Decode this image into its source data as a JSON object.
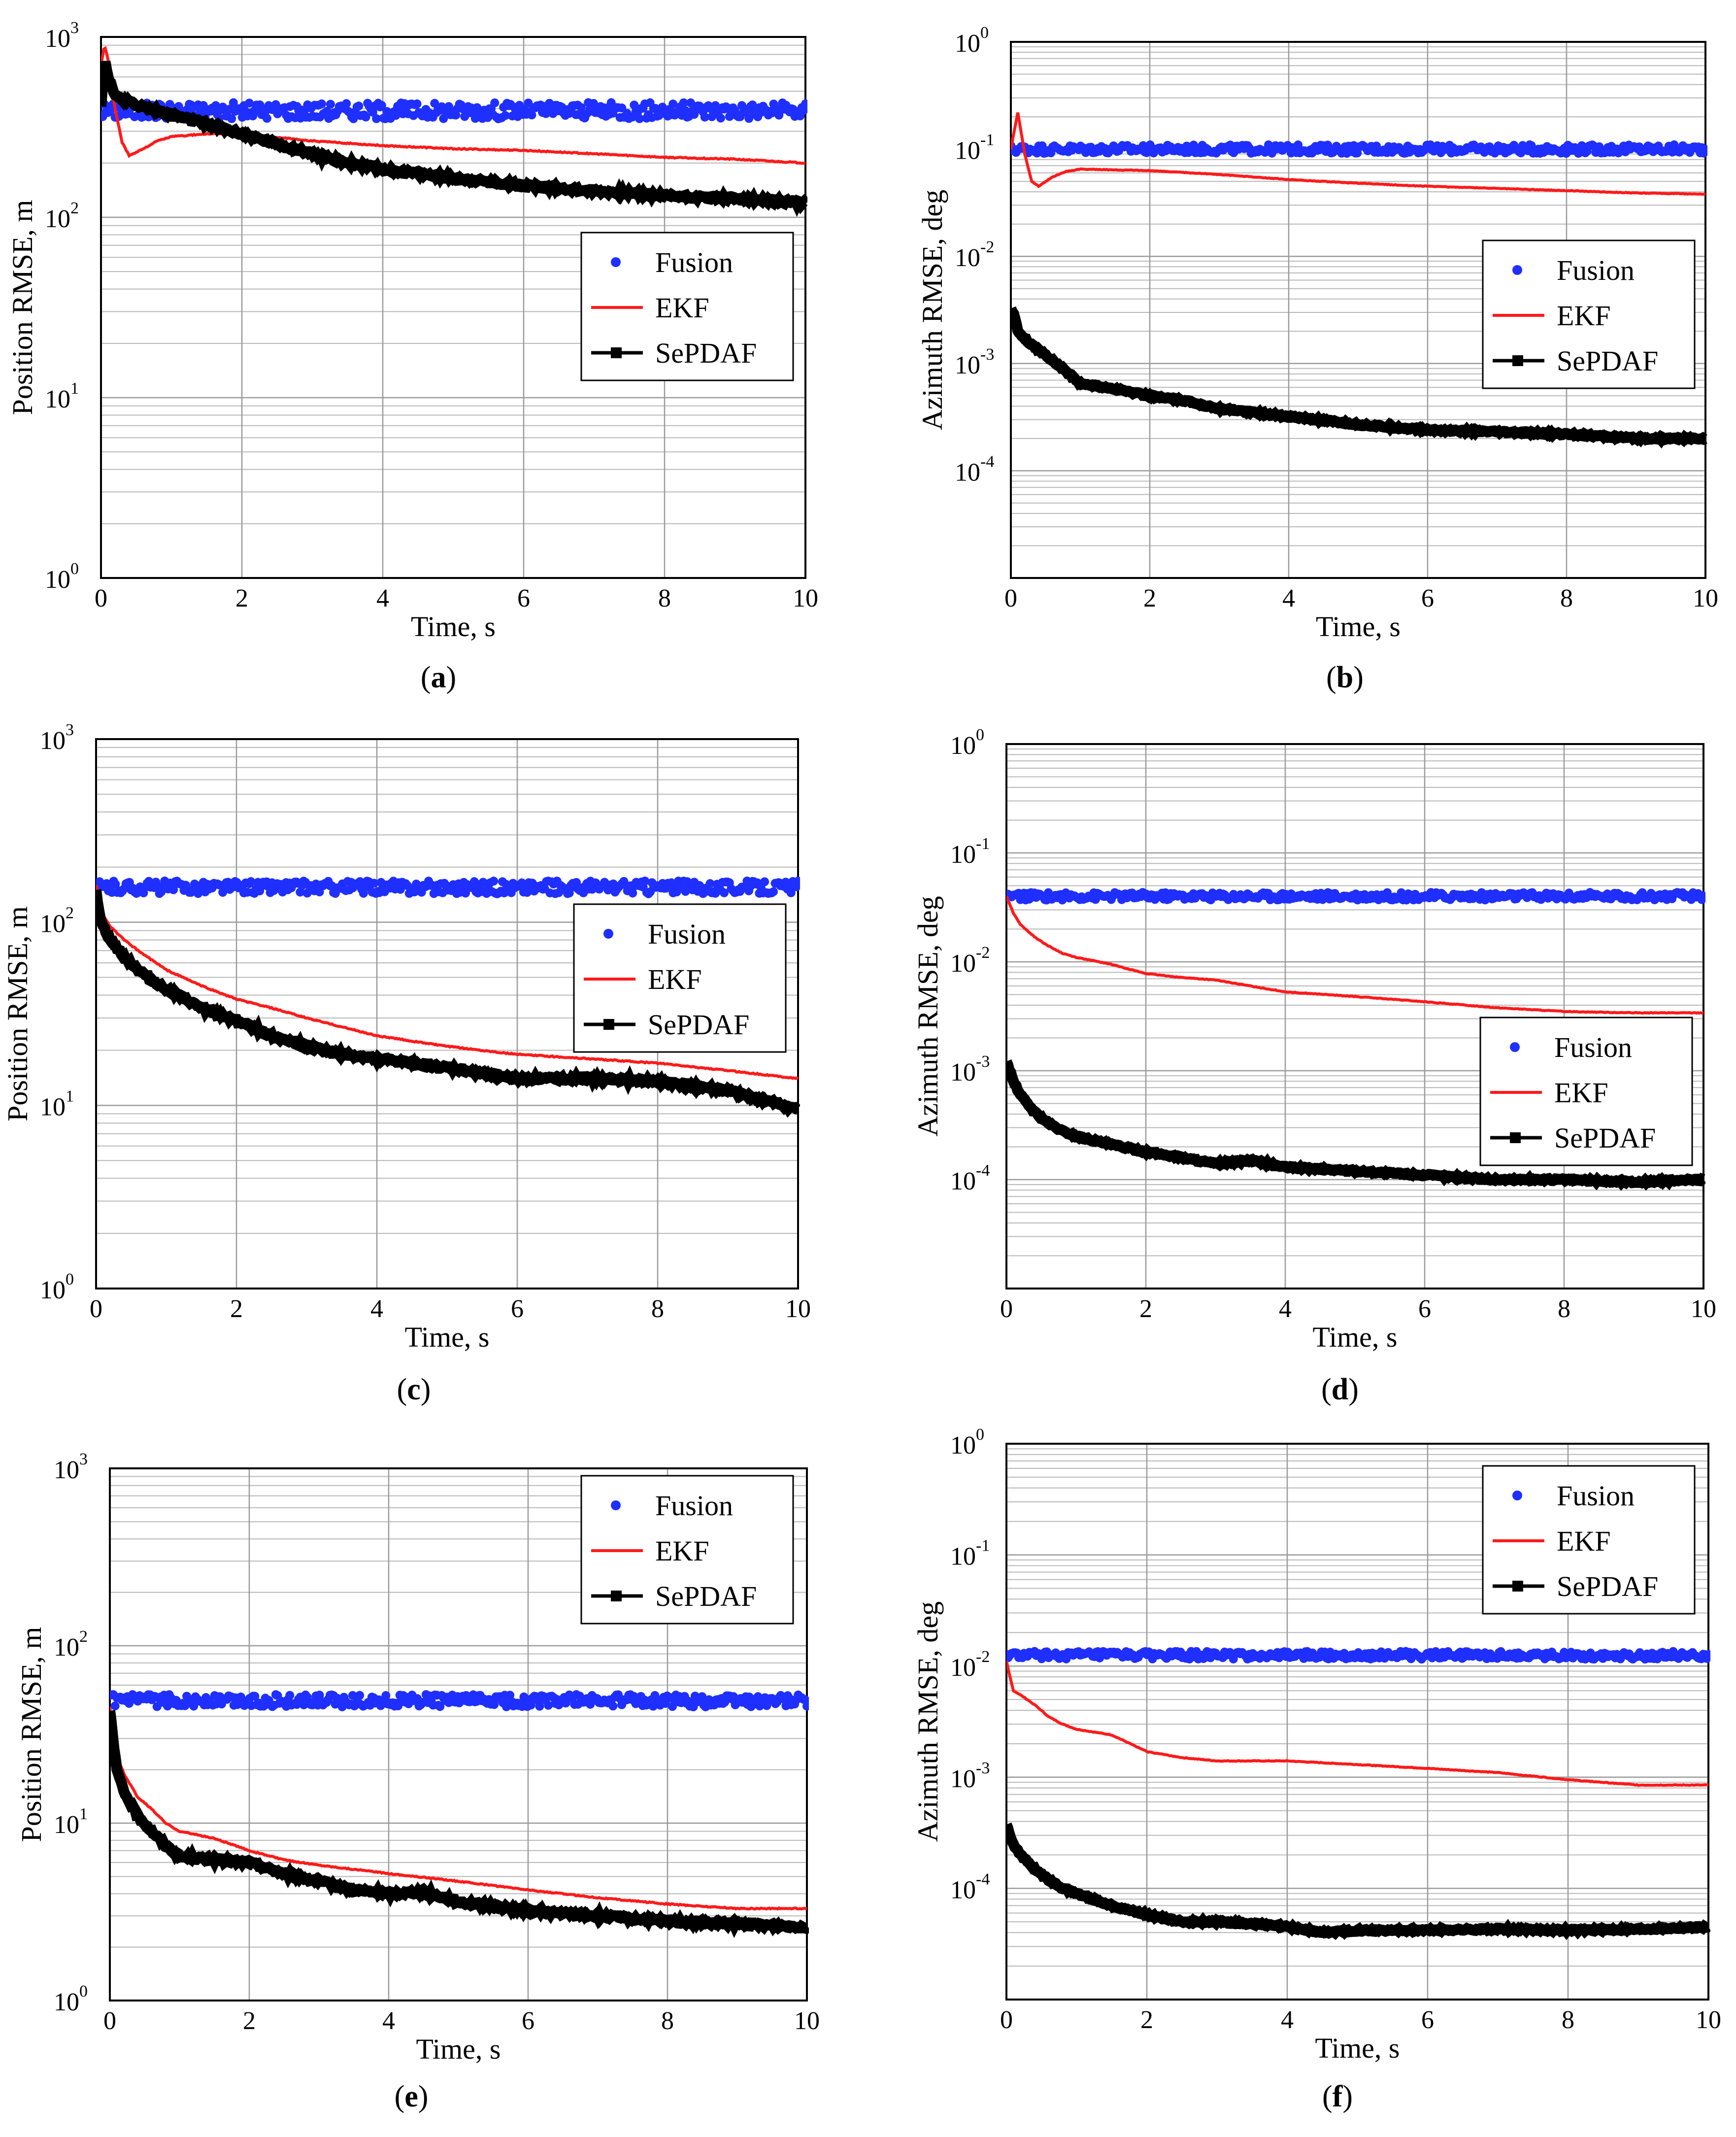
{
  "chart_data": [
    {
      "id": "a",
      "type": "line",
      "caption": "a",
      "xlabel": "Time, s",
      "ylabel": "Position RMSE, m",
      "xlim": [
        0,
        10
      ],
      "ylim": [
        1,
        1000
      ],
      "yscale": "log",
      "xticks": [
        "0",
        "2",
        "4",
        "6",
        "8",
        "10"
      ],
      "yticks": [
        {
          "base": "10",
          "exp": "0"
        },
        {
          "base": "10",
          "exp": "1"
        },
        {
          "base": "10",
          "exp": "2"
        },
        {
          "base": "10",
          "exp": "3"
        }
      ],
      "legend": {
        "position": "center-right",
        "entries": [
          "Fusion",
          "EKF",
          "SePDAF"
        ]
      },
      "series": [
        {
          "name": "Fusion",
          "style": "dots",
          "color": "#1f2fff",
          "level": 390,
          "spread": 0.045
        },
        {
          "name": "EKF",
          "style": "line",
          "color": "#ff1a1a",
          "x": [
            0,
            0.05,
            0.1,
            0.2,
            0.3,
            0.4,
            0.6,
            0.8,
            1.0,
            1.5,
            2,
            3,
            4,
            5,
            6,
            7,
            8,
            9,
            10
          ],
          "y": [
            700,
            900,
            750,
            400,
            260,
            220,
            240,
            265,
            280,
            290,
            290,
            265,
            250,
            240,
            235,
            225,
            215,
            210,
            200
          ]
        },
        {
          "name": "SePDAF",
          "style": "squares",
          "color": "#000000",
          "x": [
            0,
            0.05,
            0.1,
            0.2,
            0.3,
            0.5,
            0.75,
            1.0,
            1.5,
            2,
            2.5,
            3,
            3.5,
            4,
            5,
            6,
            7,
            8,
            9,
            10
          ],
          "y": [
            420,
            750,
            600,
            480,
            450,
            420,
            395,
            370,
            330,
            290,
            255,
            225,
            200,
            185,
            165,
            150,
            140,
            132,
            127,
            120
          ]
        }
      ]
    },
    {
      "id": "b",
      "type": "line",
      "caption": "b",
      "xlabel": "Time, s",
      "ylabel": "Azimuth RMSE, deg",
      "xlim": [
        0,
        10
      ],
      "ylim": [
        1e-05,
        1
      ],
      "yscale": "log",
      "xticks": [
        "0",
        "2",
        "4",
        "6",
        "8",
        "10"
      ],
      "yticks": [
        {
          "base": "10",
          "exp": "-4"
        },
        {
          "base": "10",
          "exp": "-3"
        },
        {
          "base": "10",
          "exp": "-2"
        },
        {
          "base": "10",
          "exp": "-1"
        },
        {
          "base": "10",
          "exp": "0"
        }
      ],
      "legend": {
        "position": "center-right",
        "entries": [
          "Fusion",
          "EKF",
          "SePDAF"
        ]
      },
      "series": [
        {
          "name": "Fusion",
          "style": "dots",
          "color": "#1f2fff",
          "level": 0.1,
          "spread": 0.04
        },
        {
          "name": "EKF",
          "style": "line",
          "color": "#ff1a1a",
          "x": [
            0,
            0.05,
            0.1,
            0.2,
            0.3,
            0.4,
            0.6,
            0.8,
            1.0,
            2,
            3,
            4,
            5,
            6,
            7,
            8,
            9,
            10
          ],
          "y": [
            0.1,
            0.15,
            0.22,
            0.09,
            0.05,
            0.045,
            0.055,
            0.062,
            0.065,
            0.063,
            0.058,
            0.052,
            0.048,
            0.045,
            0.043,
            0.041,
            0.039,
            0.038
          ]
        },
        {
          "name": "SePDAF",
          "style": "squares",
          "color": "#000000",
          "x": [
            0,
            0.05,
            0.1,
            0.2,
            0.3,
            0.5,
            0.75,
            1.0,
            1.5,
            2,
            2.5,
            3,
            4,
            5,
            6,
            7,
            8,
            9,
            10
          ],
          "y": [
            0.0033,
            0.0028,
            0.002,
            0.0017,
            0.0015,
            0.0012,
            0.0009,
            0.00065,
            0.00058,
            0.0005,
            0.00045,
            0.00038,
            0.00032,
            0.00027,
            0.00024,
            0.00023,
            0.00022,
            0.0002,
            0.0002
          ]
        }
      ]
    },
    {
      "id": "c",
      "type": "line",
      "caption": "c",
      "xlabel": "Time, s",
      "ylabel": "Position RMSE, m",
      "xlim": [
        0,
        10
      ],
      "ylim": [
        1,
        1000
      ],
      "yscale": "log",
      "xticks": [
        "0",
        "2",
        "4",
        "6",
        "8",
        "10"
      ],
      "yticks": [
        {
          "base": "10",
          "exp": "0"
        },
        {
          "base": "10",
          "exp": "1"
        },
        {
          "base": "10",
          "exp": "2"
        },
        {
          "base": "10",
          "exp": "3"
        }
      ],
      "legend": {
        "position": "center-right",
        "entries": [
          "Fusion",
          "EKF",
          "SePDAF"
        ]
      },
      "series": [
        {
          "name": "Fusion",
          "style": "dots",
          "color": "#1f2fff",
          "level": 155,
          "spread": 0.035
        },
        {
          "name": "EKF",
          "style": "line",
          "color": "#ff1a1a",
          "x": [
            0,
            0.05,
            0.1,
            0.2,
            0.4,
            0.6,
            0.8,
            1.0,
            1.5,
            2,
            2.5,
            3,
            4,
            5,
            6,
            7,
            8,
            9,
            10
          ],
          "y": [
            160,
            130,
            110,
            95,
            80,
            70,
            62,
            55,
            45,
            38,
            34,
            30,
            24,
            21,
            19,
            18,
            17,
            15.5,
            14
          ]
        },
        {
          "name": "SePDAF",
          "style": "squares",
          "color": "#000000",
          "x": [
            0,
            0.05,
            0.1,
            0.2,
            0.4,
            0.6,
            0.8,
            1.0,
            1.5,
            2,
            2.5,
            3,
            3.5,
            4,
            5,
            6,
            7,
            8,
            9,
            10
          ],
          "y": [
            150,
            110,
            95,
            80,
            65,
            55,
            48,
            43,
            34,
            29,
            24,
            21,
            19,
            18,
            16,
            14,
            14,
            13.5,
            12,
            9.5
          ]
        }
      ]
    },
    {
      "id": "d",
      "type": "line",
      "caption": "d",
      "xlabel": "Time, s",
      "ylabel": "Azimuth RMSE, deg",
      "xlim": [
        0,
        10
      ],
      "ylim": [
        1e-05,
        1
      ],
      "yscale": "log",
      "xticks": [
        "0",
        "2",
        "4",
        "6",
        "8",
        "10"
      ],
      "yticks": [
        {
          "base": "10",
          "exp": "-4"
        },
        {
          "base": "10",
          "exp": "-3"
        },
        {
          "base": "10",
          "exp": "-2"
        },
        {
          "base": "10",
          "exp": "-1"
        },
        {
          "base": "10",
          "exp": "0"
        }
      ],
      "legend": {
        "position": "center-right",
        "entries": [
          "Fusion",
          "EKF",
          "SePDAF"
        ]
      },
      "series": [
        {
          "name": "Fusion",
          "style": "dots",
          "color": "#1f2fff",
          "level": 0.04,
          "spread": 0.035
        },
        {
          "name": "EKF",
          "style": "line",
          "color": "#ff1a1a",
          "x": [
            0,
            0.1,
            0.2,
            0.4,
            0.6,
            0.8,
            1.0,
            1.5,
            2,
            2.5,
            3,
            3.5,
            4,
            5,
            6,
            7,
            8,
            9,
            10
          ],
          "y": [
            0.04,
            0.028,
            0.022,
            0.017,
            0.014,
            0.012,
            0.011,
            0.0095,
            0.0078,
            0.0072,
            0.0068,
            0.006,
            0.0053,
            0.0048,
            0.0043,
            0.0038,
            0.0035,
            0.0034,
            0.0034
          ]
        },
        {
          "name": "SePDAF",
          "style": "squares",
          "color": "#000000",
          "x": [
            0,
            0.05,
            0.1,
            0.2,
            0.4,
            0.6,
            0.8,
            1.0,
            1.5,
            2,
            2.5,
            3,
            3.5,
            4,
            5,
            6,
            7,
            8,
            9,
            10
          ],
          "y": [
            0.0012,
            0.001,
            0.0008,
            0.0006,
            0.00042,
            0.00033,
            0.00028,
            0.00025,
            0.00021,
            0.00018,
            0.00016,
            0.00014,
            0.00015,
            0.00013,
            0.00012,
            0.00011,
            0.0001,
            0.0001,
            9.5e-05,
            0.0001
          ]
        }
      ]
    },
    {
      "id": "e",
      "type": "line",
      "caption": "e",
      "xlabel": "Time, s",
      "ylabel": "Position RMSE, m",
      "xlim": [
        0,
        10
      ],
      "ylim": [
        1,
        1000
      ],
      "yscale": "log",
      "xticks": [
        "0",
        "2",
        "4",
        "6",
        "8",
        "10"
      ],
      "yticks": [
        {
          "base": "10",
          "exp": "0"
        },
        {
          "base": "10",
          "exp": "1"
        },
        {
          "base": "10",
          "exp": "2"
        },
        {
          "base": "10",
          "exp": "3"
        }
      ],
      "legend": {
        "position": "top-right",
        "entries": [
          "Fusion",
          "EKF",
          "SePDAF"
        ]
      },
      "series": [
        {
          "name": "Fusion",
          "style": "dots",
          "color": "#1f2fff",
          "level": 49,
          "spread": 0.035
        },
        {
          "name": "EKF",
          "style": "line",
          "color": "#ff1a1a",
          "x": [
            0,
            0.05,
            0.1,
            0.2,
            0.4,
            0.6,
            0.8,
            1.0,
            1.5,
            2,
            2.5,
            3,
            4,
            5,
            6,
            7,
            8,
            9,
            10
          ],
          "y": [
            45,
            30,
            24,
            19,
            14,
            12,
            10,
            9,
            8.2,
            7,
            6.2,
            5.8,
            5.2,
            4.7,
            4.2,
            3.8,
            3.5,
            3.3,
            3.3
          ]
        },
        {
          "name": "SePDAF",
          "style": "squares",
          "color": "#000000",
          "x": [
            0,
            0.05,
            0.1,
            0.2,
            0.4,
            0.6,
            0.8,
            1.0,
            1.5,
            2,
            2.5,
            3,
            3.5,
            4,
            4.5,
            5,
            6,
            7,
            8,
            9,
            10
          ],
          "y": [
            44,
            28,
            20,
            15,
            11,
            9,
            7.5,
            6.5,
            6.2,
            6.0,
            5.2,
            4.7,
            4.2,
            4.0,
            4.1,
            3.6,
            3.2,
            3.0,
            2.8,
            2.7,
            2.6
          ]
        }
      ]
    },
    {
      "id": "f",
      "type": "line",
      "caption": "f",
      "xlabel": "Time, s",
      "ylabel": "Azimuth RMSE, deg",
      "xlim": [
        0,
        10
      ],
      "ylim": [
        1e-05,
        1
      ],
      "yscale": "log",
      "xticks": [
        "0",
        "2",
        "4",
        "6",
        "8",
        "10"
      ],
      "yticks": [
        {
          "base": "10",
          "exp": "-4"
        },
        {
          "base": "10",
          "exp": "-3"
        },
        {
          "base": "10",
          "exp": "-2"
        },
        {
          "base": "10",
          "exp": "-1"
        },
        {
          "base": "10",
          "exp": "0"
        }
      ],
      "legend": {
        "position": "top-right",
        "entries": [
          "Fusion",
          "EKF",
          "SePDAF"
        ]
      },
      "series": [
        {
          "name": "Fusion",
          "style": "dots",
          "color": "#1f2fff",
          "level": 0.0125,
          "spread": 0.035
        },
        {
          "name": "EKF",
          "style": "line",
          "color": "#ff1a1a",
          "x": [
            0,
            0.05,
            0.1,
            0.2,
            0.4,
            0.6,
            0.8,
            1.0,
            1.5,
            2,
            2.5,
            3,
            4,
            5,
            6,
            7,
            8,
            9,
            10
          ],
          "y": [
            0.011,
            0.008,
            0.006,
            0.0055,
            0.0045,
            0.0035,
            0.003,
            0.0027,
            0.0024,
            0.0017,
            0.0015,
            0.0014,
            0.0014,
            0.0013,
            0.0012,
            0.0011,
            0.00095,
            0.00085,
            0.00085
          ]
        },
        {
          "name": "SePDAF",
          "style": "squares",
          "color": "#000000",
          "x": [
            0,
            0.05,
            0.1,
            0.2,
            0.4,
            0.6,
            0.8,
            1.0,
            1.5,
            2,
            2.5,
            3,
            3.5,
            4,
            4.5,
            5,
            6,
            7,
            8,
            9,
            10
          ],
          "y": [
            0.00038,
            0.0003,
            0.00025,
            0.0002,
            0.00015,
            0.00012,
            0.0001,
            9e-05,
            7e-05,
            5.8e-05,
            5e-05,
            5e-05,
            4.8e-05,
            4.5e-05,
            4e-05,
            4.2e-05,
            4.2e-05,
            4.3e-05,
            4.2e-05,
            4.3e-05,
            4.5e-05
          ]
        }
      ]
    }
  ]
}
